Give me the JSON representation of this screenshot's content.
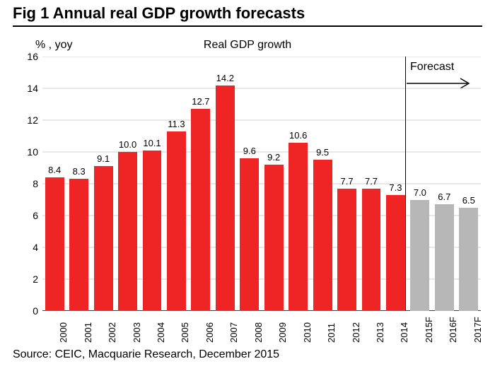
{
  "figure_title": "Fig 1    Annual real GDP growth forecasts",
  "y_axis_unit": "% , yoy",
  "subtitle": "Real GDP growth",
  "forecast_label": "Forecast",
  "source": "Source: CEIC, Macquarie Research, December 2015",
  "chart": {
    "type": "bar",
    "ylim": [
      0,
      16
    ],
    "ytick_step": 2,
    "background_color": "#ffffff",
    "grid_color": "#d0d0d0",
    "axis_color": "#000000",
    "bar_width_ratio": 0.78,
    "label_fontsize": 13,
    "value_label_fontsize": 13,
    "historical_color": "#ef2424",
    "forecast_color": "#b7b7b7",
    "categories": [
      "2000",
      "2001",
      "2002",
      "2003",
      "2004",
      "2005",
      "2006",
      "2007",
      "2008",
      "2009",
      "2010",
      "2011",
      "2012",
      "2013",
      "2014",
      "2015F",
      "2016F",
      "2017F"
    ],
    "values": [
      8.4,
      8.3,
      9.1,
      10.0,
      10.1,
      11.3,
      12.7,
      14.2,
      9.6,
      9.2,
      10.6,
      9.5,
      7.7,
      7.7,
      7.3,
      7.0,
      6.7,
      6.5
    ],
    "is_forecast": [
      false,
      false,
      false,
      false,
      false,
      false,
      false,
      false,
      false,
      false,
      false,
      false,
      false,
      false,
      false,
      true,
      true,
      true
    ]
  }
}
